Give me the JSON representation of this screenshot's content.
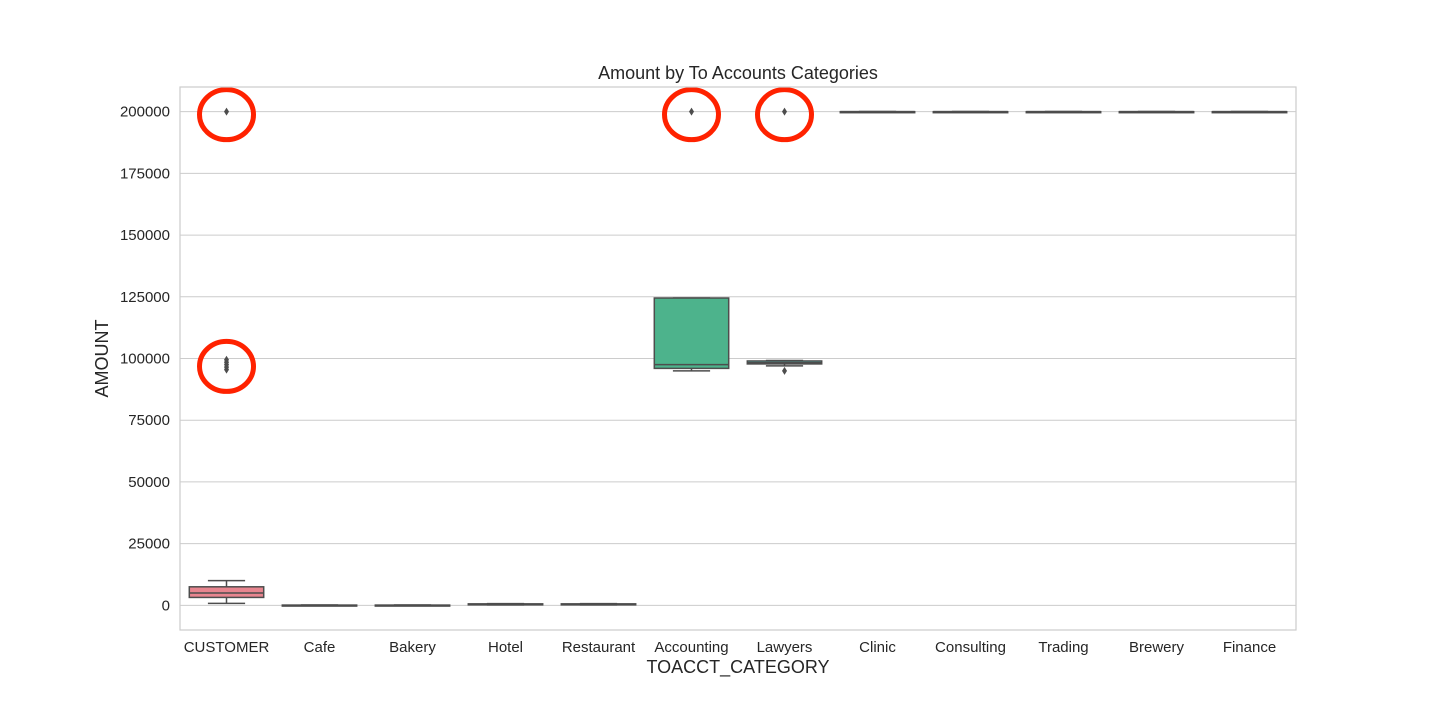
{
  "chart_data": {
    "type": "box",
    "title": "Amount by To Accounts Categories",
    "xlabel": "TOACCT_CATEGORY",
    "ylabel": "AMOUNT",
    "ylim": [
      -10000,
      210000
    ],
    "yticks": [
      0,
      25000,
      50000,
      75000,
      100000,
      125000,
      150000,
      175000,
      200000
    ],
    "grid": "horizontal",
    "categories": [
      "CUSTOMER",
      "Cafe",
      "Bakery",
      "Hotel",
      "Restaurant",
      "Accounting",
      "Lawyers",
      "Clinic",
      "Consulting",
      "Trading",
      "Brewery",
      "Finance"
    ],
    "boxes": [
      {
        "category": "CUSTOMER",
        "whislo": 800,
        "q1": 3200,
        "med": 5000,
        "q3": 7500,
        "whishi": 10000,
        "fliers": [
          95500,
          96500,
          97500,
          98500,
          99500,
          200000
        ],
        "color": "#e8858f"
      },
      {
        "category": "Cafe",
        "whislo": 0,
        "q1": 0,
        "med": 0,
        "q3": 100,
        "whishi": 150,
        "fliers": [],
        "color": "#d19a4c"
      },
      {
        "category": "Bakery",
        "whislo": 0,
        "q1": 0,
        "med": 0,
        "q3": 100,
        "whishi": 150,
        "fliers": [],
        "color": "#b0a84a"
      },
      {
        "category": "Hotel",
        "whislo": 200,
        "q1": 300,
        "med": 400,
        "q3": 600,
        "whishi": 700,
        "fliers": [],
        "color": "#7fb24a"
      },
      {
        "category": "Restaurant",
        "whislo": 200,
        "q1": 300,
        "med": 400,
        "q3": 600,
        "whishi": 700,
        "fliers": [],
        "color": "#4bb86a"
      },
      {
        "category": "Accounting",
        "whislo": 95000,
        "q1": 96000,
        "med": 97500,
        "q3": 124500,
        "whishi": 124500,
        "fliers": [
          200000
        ],
        "color": "#4db38c"
      },
      {
        "category": "Lawyers",
        "whislo": 97000,
        "q1": 97800,
        "med": 98300,
        "q3": 99000,
        "whishi": 99200,
        "fliers": [
          95000,
          200000
        ],
        "color": "#4bb0a6"
      },
      {
        "category": "Clinic",
        "whislo": 200000,
        "q1": 200000,
        "med": 200000,
        "q3": 200000,
        "whishi": 200000,
        "fliers": [],
        "color": "#4aa9c2"
      },
      {
        "category": "Consulting",
        "whislo": 200000,
        "q1": 200000,
        "med": 200000,
        "q3": 200000,
        "whishi": 200000,
        "fliers": [],
        "color": "#5f9fe0"
      },
      {
        "category": "Trading",
        "whislo": 200000,
        "q1": 200000,
        "med": 200000,
        "q3": 200000,
        "whishi": 200000,
        "fliers": [],
        "color": "#a18fe8"
      },
      {
        "category": "Brewery",
        "whislo": 200000,
        "q1": 200000,
        "med": 200000,
        "q3": 200000,
        "whishi": 200000,
        "fliers": [],
        "color": "#d97fd9"
      },
      {
        "category": "Finance",
        "whislo": 200000,
        "q1": 200000,
        "med": 200000,
        "q3": 200000,
        "whishi": 200000,
        "fliers": [],
        "color": "#e87fb5"
      }
    ],
    "annotations": [
      {
        "type": "circle",
        "category": "CUSTOMER",
        "y": 200000,
        "color": "#ff2200"
      },
      {
        "type": "circle",
        "category": "CUSTOMER",
        "y": 98000,
        "color": "#ff2200"
      },
      {
        "type": "circle",
        "category": "Accounting",
        "y": 200000,
        "color": "#ff2200"
      },
      {
        "type": "circle",
        "category": "Lawyers",
        "y": 200000,
        "color": "#ff2200"
      }
    ],
    "colors": {
      "grid": "#cccccc",
      "frame": "#cccccc",
      "line": "#4d4d4d",
      "text": "#262626"
    }
  }
}
